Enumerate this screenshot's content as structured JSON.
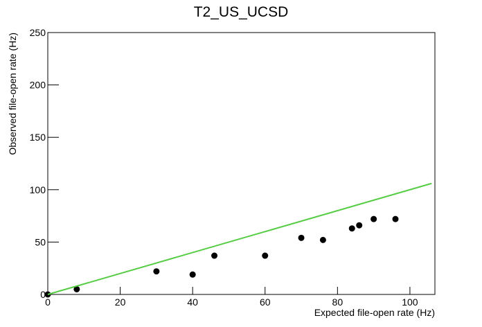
{
  "chart_data": {
    "type": "scatter",
    "title": "T2_US_UCSD",
    "x_label": "Expected file-open rate (Hz)",
    "y_label": "Observed file-open rate (Hz)",
    "series": [
      {
        "type": "scatter",
        "color": "#000000",
        "x": [
          0,
          8,
          30,
          40,
          46,
          60,
          70,
          76,
          84,
          86,
          90,
          96
        ],
        "values": [
          0,
          5,
          22,
          19,
          37,
          37,
          54,
          52,
          63,
          66,
          72,
          72
        ]
      },
      {
        "type": "line",
        "color": "#55cc44",
        "x": [
          0,
          106
        ],
        "values": [
          0,
          106
        ]
      }
    ],
    "xlim": [
      0,
      106.9
    ],
    "ylim": [
      0,
      250
    ],
    "xticks": [
      0,
      20,
      40,
      60,
      80,
      100
    ],
    "yticks": [
      0,
      50,
      100,
      150,
      200,
      250
    ]
  }
}
